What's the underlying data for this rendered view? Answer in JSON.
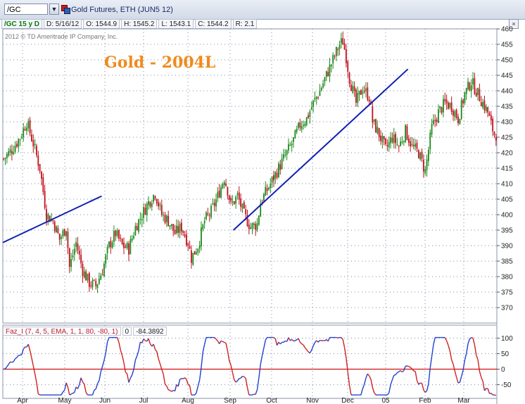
{
  "toolbar": {
    "symbol": "/GC",
    "instrument_title": "Gold Futures, ETH (JUN5 12)"
  },
  "ohlc_bar": {
    "symbol_period": "/GC 15 y D",
    "date": "D: 5/16/12",
    "open": "O: 1544.9",
    "high": "H: 1545.2",
    "low": "L: 1543.1",
    "close": "C: 1544.2",
    "range": "R: 2.1"
  },
  "copyright": "2012 © TD Ameritrade IP Company, Inc.",
  "annotation_title": "Gold - 2004L",
  "indicator": {
    "label": "Faz_I (7, 4, 5, EMA, 1, 1, 80, -80, 1)",
    "zero": "0",
    "value": "-84.3892"
  },
  "colors": {
    "up": "#1a8a1a",
    "down": "#c0101c",
    "trendline": "#1020b0",
    "osc_up": "#2040d0",
    "osc_down": "#d02020",
    "grid": "#7a8aa8"
  },
  "chart_data": [
    {
      "type": "candlestick",
      "ylim": [
        365,
        460
      ],
      "y_ticks": [
        370,
        375,
        380,
        385,
        390,
        395,
        400,
        405,
        410,
        415,
        420,
        425,
        430,
        435,
        440,
        445,
        450,
        455,
        460
      ],
      "x_ticks": [
        "Apr",
        "May",
        "Jun",
        "Jul",
        "Aug",
        "Sep",
        "Oct",
        "Nov",
        "Dec",
        "05",
        "Feb",
        "Mar"
      ],
      "close_path": [
        [
          0,
          418
        ],
        [
          5,
          421
        ],
        [
          10,
          425
        ],
        [
          14,
          430
        ],
        [
          18,
          423
        ],
        [
          22,
          415
        ],
        [
          26,
          400
        ],
        [
          30,
          398
        ],
        [
          34,
          392
        ],
        [
          38,
          396
        ],
        [
          40,
          383
        ],
        [
          44,
          391
        ],
        [
          48,
          382
        ],
        [
          52,
          378
        ],
        [
          56,
          377
        ],
        [
          60,
          382
        ],
        [
          64,
          390
        ],
        [
          68,
          394
        ],
        [
          72,
          390
        ],
        [
          76,
          389
        ],
        [
          80,
          396
        ],
        [
          84,
          400
        ],
        [
          88,
          404
        ],
        [
          92,
          407
        ],
        [
          96,
          400
        ],
        [
          100,
          398
        ],
        [
          104,
          394
        ],
        [
          108,
          396
        ],
        [
          112,
          391
        ],
        [
          114,
          386
        ],
        [
          118,
          390
        ],
        [
          122,
          398
        ],
        [
          126,
          401
        ],
        [
          130,
          406
        ],
        [
          134,
          412
        ],
        [
          136,
          408
        ],
        [
          138,
          403
        ],
        [
          142,
          406
        ],
        [
          146,
          400
        ],
        [
          150,
          396
        ],
        [
          154,
          397
        ],
        [
          156,
          404
        ],
        [
          160,
          408
        ],
        [
          164,
          412
        ],
        [
          168,
          416
        ],
        [
          172,
          420
        ],
        [
          176,
          424
        ],
        [
          180,
          429
        ],
        [
          184,
          431
        ],
        [
          188,
          436
        ],
        [
          192,
          440
        ],
        [
          196,
          445
        ],
        [
          200,
          450
        ],
        [
          204,
          455
        ],
        [
          206,
          456
        ],
        [
          208,
          451
        ],
        [
          210,
          444
        ],
        [
          214,
          436
        ],
        [
          218,
          441
        ],
        [
          222,
          438
        ],
        [
          224,
          430
        ],
        [
          228,
          426
        ],
        [
          232,
          421
        ],
        [
          236,
          425
        ],
        [
          240,
          422
        ],
        [
          244,
          427
        ],
        [
          248,
          422
        ],
        [
          252,
          420
        ],
        [
          254,
          417
        ],
        [
          256,
          414
        ],
        [
          258,
          421
        ],
        [
          260,
          428
        ],
        [
          264,
          433
        ],
        [
          268,
          436
        ],
        [
          272,
          435
        ],
        [
          276,
          431
        ],
        [
          280,
          439
        ],
        [
          284,
          443
        ],
        [
          286,
          441
        ],
        [
          290,
          437
        ],
        [
          294,
          433
        ],
        [
          296,
          429
        ],
        [
          298,
          426
        ]
      ],
      "trendlines": [
        {
          "from": [
            0,
            391
          ],
          "to": [
            60,
            406
          ]
        },
        {
          "from": [
            140,
            395
          ],
          "to": [
            246,
            447
          ]
        }
      ]
    },
    {
      "type": "oscillator",
      "name": "Faz_I",
      "ylim": [
        -85,
        110
      ],
      "y_ticks": [
        100,
        50,
        0,
        -50
      ],
      "zero_line": 0,
      "last_value": -84.3892
    }
  ]
}
